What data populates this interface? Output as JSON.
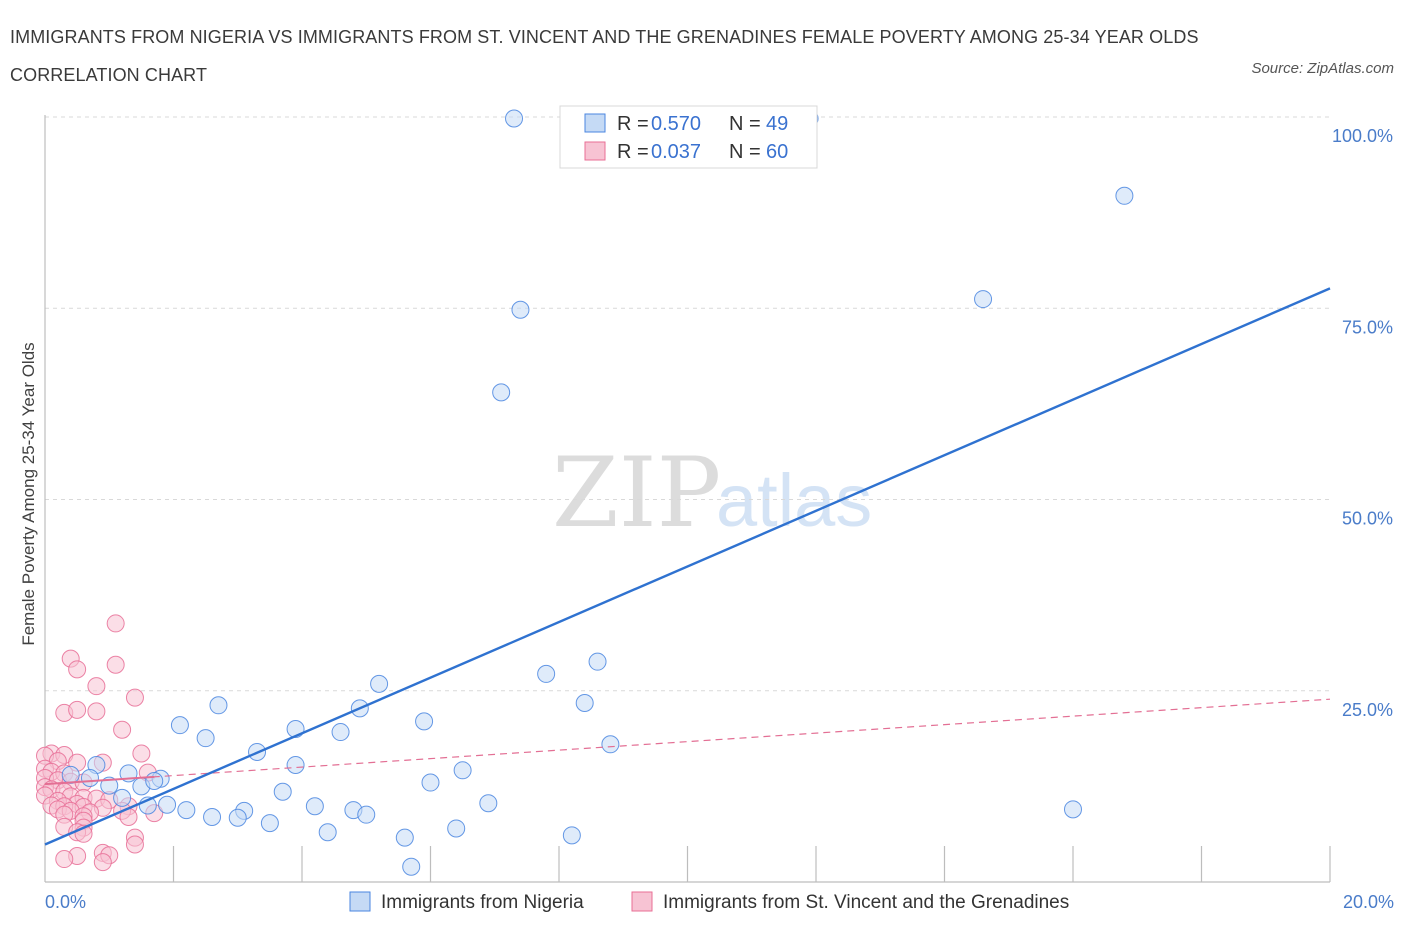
{
  "header": {
    "title": "IMMIGRANTS FROM NIGERIA VS IMMIGRANTS FROM ST. VINCENT AND THE GRENADINES FEMALE POVERTY AMONG 25-34 YEAR OLDS CORRELATION CHART",
    "source": "Source: ZipAtlas.com"
  },
  "watermark": {
    "zip": "ZIP",
    "atlas": "atlas"
  },
  "colors": {
    "nigeria": "#4a86e0",
    "nigeria_fill": "#c5daf5",
    "stvincent": "#e86f96",
    "stvincent_fill": "#f7c3d3",
    "trend_blue": "#2f72d0",
    "trend_pink": "#e36f94",
    "tick": "#4a7cc9"
  },
  "legend": {
    "series": [
      {
        "r_label": "R = ",
        "r_value": "0.570",
        "n_label": "N = ",
        "n_value": "49"
      },
      {
        "r_label": "R = ",
        "r_value": "0.037",
        "n_label": "N = ",
        "n_value": "60"
      }
    ]
  },
  "chart_data": {
    "type": "scatter",
    "title": "IMMIGRANTS FROM NIGERIA VS IMMIGRANTS FROM ST. VINCENT AND THE GRENADINES FEMALE POVERTY AMONG 25-34 YEAR OLDS CORRELATION CHART",
    "xlabel": "",
    "ylabel": "Female Poverty Among 25-34 Year Olds",
    "xlim": [
      0,
      20
    ],
    "ylim": [
      0,
      100
    ],
    "x_tick_labels": [
      "0.0%",
      "20.0%"
    ],
    "y_ticks": [
      25,
      50,
      75,
      100
    ],
    "y_tick_labels": [
      "25.0%",
      "50.0%",
      "75.0%",
      "100.0%"
    ],
    "grid": true,
    "legend_position": "top-center",
    "series": [
      {
        "name": "Immigrants from Nigeria",
        "R": 0.57,
        "N": 49,
        "trend": {
          "x": [
            0,
            20
          ],
          "y": [
            4.9,
            77.6
          ]
        },
        "points": [
          [
            7.3,
            99.8
          ],
          [
            11.9,
            99.8
          ],
          [
            16.8,
            89.7
          ],
          [
            14.6,
            76.2
          ],
          [
            7.4,
            74.8
          ],
          [
            7.1,
            64.0
          ],
          [
            8.6,
            28.8
          ],
          [
            7.8,
            27.2
          ],
          [
            5.2,
            25.9
          ],
          [
            8.4,
            23.4
          ],
          [
            2.7,
            23.1
          ],
          [
            4.9,
            22.7
          ],
          [
            2.1,
            20.5
          ],
          [
            5.9,
            21.0
          ],
          [
            4.6,
            19.6
          ],
          [
            3.9,
            20.0
          ],
          [
            2.5,
            18.8
          ],
          [
            8.8,
            18.0
          ],
          [
            3.3,
            17.0
          ],
          [
            0.8,
            15.3
          ],
          [
            3.9,
            15.3
          ],
          [
            6.5,
            14.6
          ],
          [
            1.3,
            14.2
          ],
          [
            1.8,
            13.5
          ],
          [
            0.7,
            13.6
          ],
          [
            0.4,
            14.0
          ],
          [
            1.0,
            12.6
          ],
          [
            1.5,
            12.5
          ],
          [
            1.7,
            13.2
          ],
          [
            6.0,
            13.0
          ],
          [
            3.7,
            11.8
          ],
          [
            1.2,
            11.0
          ],
          [
            6.9,
            10.3
          ],
          [
            1.6,
            10.0
          ],
          [
            1.9,
            10.1
          ],
          [
            2.2,
            9.4
          ],
          [
            3.1,
            9.3
          ],
          [
            4.2,
            9.9
          ],
          [
            4.8,
            9.4
          ],
          [
            5.0,
            8.8
          ],
          [
            2.6,
            8.5
          ],
          [
            3.0,
            8.4
          ],
          [
            3.5,
            7.7
          ],
          [
            16.0,
            9.5
          ],
          [
            6.4,
            7.0
          ],
          [
            4.4,
            6.5
          ],
          [
            5.6,
            5.8
          ],
          [
            8.2,
            6.1
          ],
          [
            5.7,
            2.0
          ]
        ]
      },
      {
        "name": "Immigrants from St. Vincent and the Grenadines",
        "R": 0.037,
        "N": 60,
        "trend": {
          "x": [
            0,
            20
          ],
          "y": [
            12.8,
            23.9
          ]
        },
        "points": [
          [
            1.1,
            33.8
          ],
          [
            0.4,
            29.2
          ],
          [
            1.1,
            28.4
          ],
          [
            0.5,
            27.8
          ],
          [
            0.8,
            25.6
          ],
          [
            1.4,
            24.1
          ],
          [
            0.8,
            22.3
          ],
          [
            0.3,
            22.1
          ],
          [
            0.5,
            22.5
          ],
          [
            1.2,
            19.9
          ],
          [
            0.1,
            16.8
          ],
          [
            0.3,
            16.6
          ],
          [
            1.5,
            16.8
          ],
          [
            0.0,
            16.5
          ],
          [
            0.2,
            15.8
          ],
          [
            0.5,
            15.6
          ],
          [
            0.9,
            15.6
          ],
          [
            0.0,
            14.8
          ],
          [
            0.1,
            14.4
          ],
          [
            0.3,
            14.2
          ],
          [
            1.6,
            14.3
          ],
          [
            0.0,
            13.6
          ],
          [
            0.2,
            13.3
          ],
          [
            0.4,
            13.1
          ],
          [
            0.6,
            13.0
          ],
          [
            0.0,
            12.4
          ],
          [
            0.1,
            12.1
          ],
          [
            0.3,
            11.8
          ],
          [
            0.0,
            11.3
          ],
          [
            0.4,
            11.2
          ],
          [
            0.6,
            11.0
          ],
          [
            0.8,
            10.9
          ],
          [
            1.0,
            10.7
          ],
          [
            0.2,
            10.6
          ],
          [
            0.5,
            10.2
          ],
          [
            0.1,
            10.0
          ],
          [
            0.3,
            9.9
          ],
          [
            0.6,
            9.8
          ],
          [
            0.9,
            9.7
          ],
          [
            1.3,
            9.9
          ],
          [
            0.2,
            9.5
          ],
          [
            0.4,
            9.3
          ],
          [
            0.7,
            9.1
          ],
          [
            1.2,
            9.3
          ],
          [
            1.7,
            9.0
          ],
          [
            0.3,
            8.8
          ],
          [
            0.6,
            8.6
          ],
          [
            0.6,
            8.0
          ],
          [
            1.3,
            8.5
          ],
          [
            0.3,
            7.2
          ],
          [
            0.6,
            7.1
          ],
          [
            0.5,
            6.5
          ],
          [
            0.6,
            6.3
          ],
          [
            1.4,
            5.8
          ],
          [
            0.9,
            3.8
          ],
          [
            1.0,
            3.5
          ],
          [
            0.5,
            3.4
          ],
          [
            0.3,
            3.0
          ],
          [
            0.9,
            2.6
          ],
          [
            1.4,
            4.9
          ]
        ]
      }
    ]
  }
}
